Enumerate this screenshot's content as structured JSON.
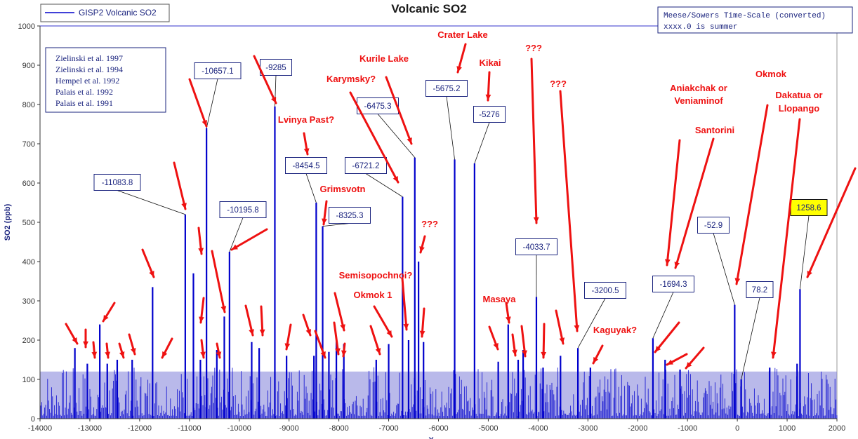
{
  "chart_data": {
    "type": "line",
    "title": "Volcanic SO2",
    "xlabel": "X",
    "ylabel": "SO2 (ppb)",
    "xlim": [
      -14000,
      2000
    ],
    "ylim": [
      0,
      1000
    ],
    "x_ticks": [
      "-14000",
      "-13000",
      "-12000",
      "-11000",
      "-10000",
      "-9000",
      "-8000",
      "-7000",
      "-6000",
      "-5000",
      "-4000",
      "-3000",
      "-2000",
      "-1000",
      "0",
      "1000",
      "2000"
    ],
    "y_ticks": [
      "0",
      "100",
      "200",
      "300",
      "400",
      "500",
      "600",
      "700",
      "800",
      "900",
      "1000"
    ],
    "grid": false,
    "legend": {
      "placement": "top-left",
      "entries": [
        "GISP2 Volcanic SO2"
      ]
    },
    "series": [
      {
        "name": "GISP2 Volcanic SO2",
        "color": "#0000cc",
        "peaks": [
          {
            "x": -13300,
            "y": 180
          },
          {
            "x": -13050,
            "y": 140
          },
          {
            "x": -12800,
            "y": 240
          },
          {
            "x": -12650,
            "y": 140
          },
          {
            "x": -12450,
            "y": 150
          },
          {
            "x": -12150,
            "y": 150
          },
          {
            "x": -11740,
            "y": 335
          },
          {
            "x": -11083.8,
            "y": 520
          },
          {
            "x": -10920,
            "y": 370
          },
          {
            "x": -10780,
            "y": 150
          },
          {
            "x": -10657.1,
            "y": 740
          },
          {
            "x": -10450,
            "y": 175
          },
          {
            "x": -10300,
            "y": 260
          },
          {
            "x": -10195.8,
            "y": 425
          },
          {
            "x": -9750,
            "y": 195
          },
          {
            "x": -9600,
            "y": 180
          },
          {
            "x": -9285,
            "y": 795
          },
          {
            "x": -9050,
            "y": 160
          },
          {
            "x": -8500,
            "y": 160
          },
          {
            "x": -8454.5,
            "y": 550
          },
          {
            "x": -8325.3,
            "y": 490
          },
          {
            "x": -8200,
            "y": 170
          },
          {
            "x": -8050,
            "y": 200
          },
          {
            "x": -7900,
            "y": 190
          },
          {
            "x": -7250,
            "y": 150
          },
          {
            "x": -7000,
            "y": 190
          },
          {
            "x": -6721.2,
            "y": 565
          },
          {
            "x": -6600,
            "y": 200
          },
          {
            "x": -6475.3,
            "y": 665
          },
          {
            "x": -6400,
            "y": 400
          },
          {
            "x": -6300,
            "y": 195
          },
          {
            "x": -5675.2,
            "y": 660
          },
          {
            "x": -5276,
            "y": 650
          },
          {
            "x": -4800,
            "y": 145
          },
          {
            "x": -4600,
            "y": 240
          },
          {
            "x": -4400,
            "y": 150
          },
          {
            "x": -4300,
            "y": 175
          },
          {
            "x": -4033.7,
            "y": 310
          },
          {
            "x": -3900,
            "y": 130
          },
          {
            "x": -3550,
            "y": 160
          },
          {
            "x": -3200.5,
            "y": 180
          },
          {
            "x": -2950,
            "y": 130
          },
          {
            "x": -1694.3,
            "y": 205
          },
          {
            "x": -1450,
            "y": 150
          },
          {
            "x": -1150,
            "y": 125
          },
          {
            "x": -52.9,
            "y": 290
          },
          {
            "x": 78.2,
            "y": 100
          },
          {
            "x": 650,
            "y": 130
          },
          {
            "x": 1200,
            "y": 140
          },
          {
            "x": 1258.6,
            "y": 330
          }
        ]
      }
    ],
    "threshold_band": {
      "from": 0,
      "to": 120,
      "color": "#8080d8"
    },
    "callouts": [
      {
        "label": "-11083.8",
        "x": -11083.8,
        "y": 520
      },
      {
        "label": "-10657.1",
        "x": -10657.1,
        "y": 740
      },
      {
        "label": "-10195.8",
        "x": -10195.8,
        "y": 425
      },
      {
        "label": "-9285",
        "x": -9285,
        "y": 795
      },
      {
        "label": "-8454.5",
        "x": -8454.5,
        "y": 550
      },
      {
        "label": "-8325.3",
        "x": -8325.3,
        "y": 490
      },
      {
        "label": "-6721.2",
        "x": -6721.2,
        "y": 565
      },
      {
        "label": "-6475.3",
        "x": -6475.3,
        "y": 665
      },
      {
        "label": "-5675.2",
        "x": -5675.2,
        "y": 660
      },
      {
        "label": "-5276",
        "x": -5276,
        "y": 650
      },
      {
        "label": "-4033.7",
        "x": -4033.7,
        "y": 310
      },
      {
        "label": "-3200.5",
        "x": -3200.5,
        "y": 180
      },
      {
        "label": "-1694.3",
        "x": -1694.3,
        "y": 205
      },
      {
        "label": "-52.9",
        "x": -52.9,
        "y": 290
      },
      {
        "label": "78.2",
        "x": 78.2,
        "y": 100
      },
      {
        "label": "1258.6",
        "x": 1258.6,
        "y": 330,
        "highlight": true
      }
    ],
    "volcano_labels": [
      "Crater Lake",
      "Kurile Lake",
      "Kikai",
      "Karymsky?",
      "Lvinya Past?",
      "Grimsvotn",
      "???",
      "???",
      "???",
      "Semisopochnoi?",
      "Okmok 1",
      "Masaya",
      "Kaguyak?",
      "Aniakchak or",
      "Veniaminof",
      "Santorini",
      "Okmok",
      "Dakatua or",
      "Llopango"
    ],
    "references": [
      "Zielinski et al. 1997",
      "Zielinski et al. 1994",
      "Hempel et al. 1992",
      "Palais et al. 1992",
      "Palais et al. 1991"
    ],
    "timescale_note": [
      "Meese/Sowers Time-Scale (converted)",
      "xxxx.0 is summer"
    ]
  }
}
